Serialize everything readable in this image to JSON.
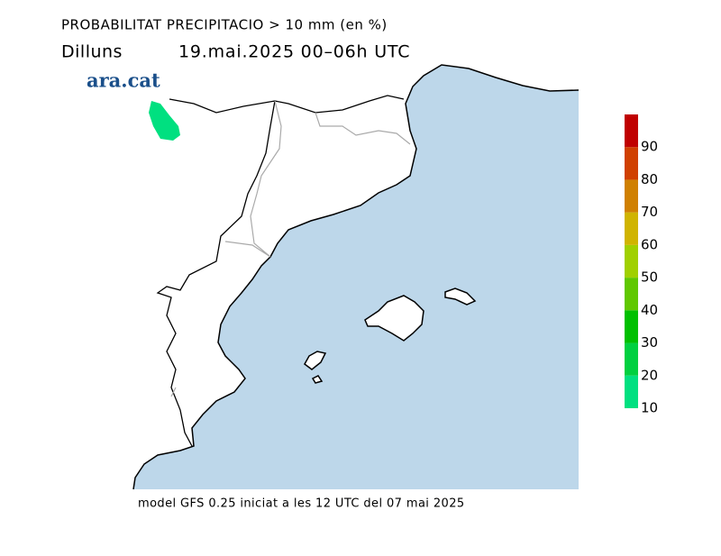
{
  "title": "PROBABILITAT PRECIPITACIO > 10 mm (en %)",
  "day": "Dilluns",
  "period": "19.mai.2025 00–06h UTC",
  "logo": "ara.cat",
  "footer": "model GFS 0.25 iniciat a les 12 UTC del 07 mai 2025",
  "colorbar": {
    "range": [
      10,
      100
    ],
    "ticks": [
      10,
      20,
      30,
      40,
      50,
      60,
      70,
      80,
      90
    ],
    "colors": [
      "#00e080",
      "#00d040",
      "#00c000",
      "#60c800",
      "#a0d000",
      "#d0b400",
      "#d08000",
      "#d04000",
      "#c00000"
    ]
  }
}
